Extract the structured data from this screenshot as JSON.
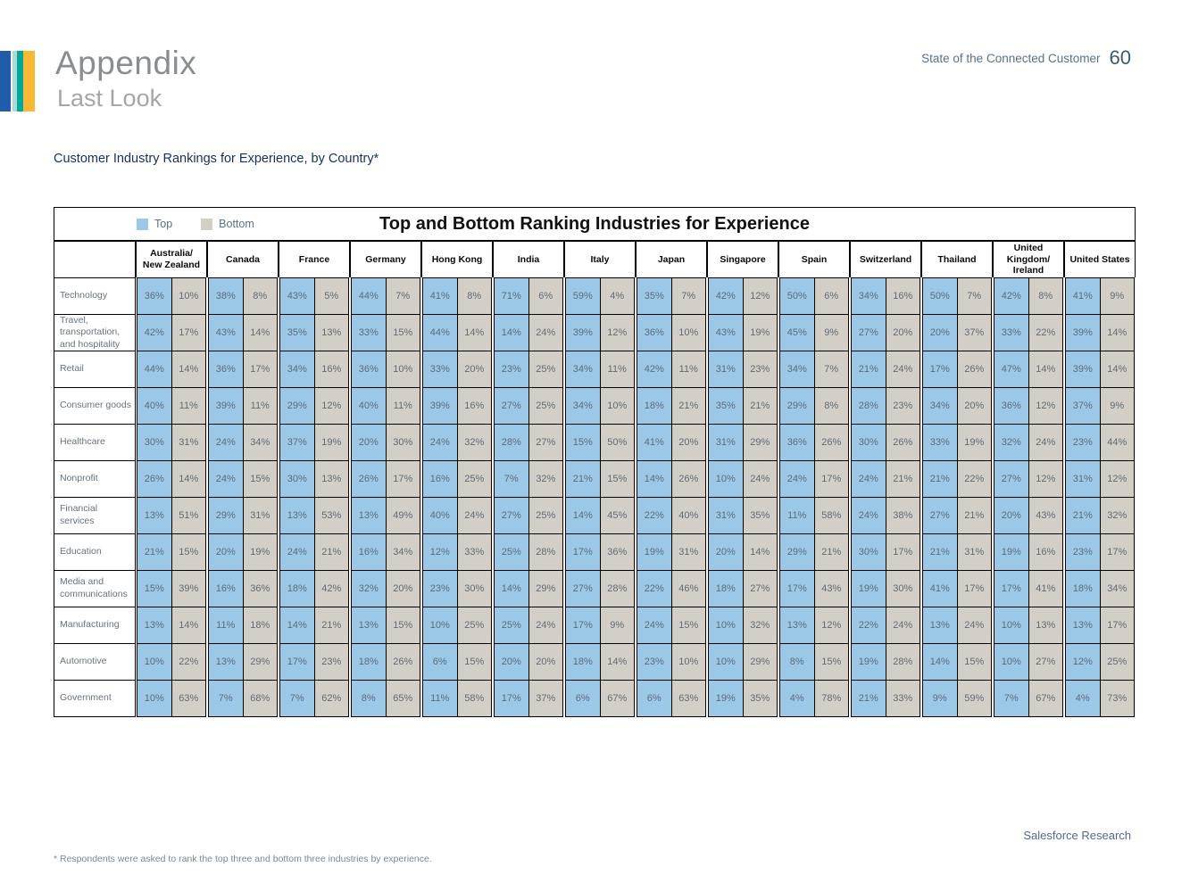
{
  "page": {
    "title": "Appendix",
    "subtitle": "Last Look",
    "report_name": "State of the Connected Customer",
    "page_number": "60",
    "section_title": "Customer Industry Rankings for Experience, by Country*",
    "footnote": "* Respondents were asked to rank the top three and bottom three industries by experience.",
    "attribution": "Salesforce Research"
  },
  "legend": {
    "top_label": "Top",
    "bottom_label": "Bottom"
  },
  "colors": {
    "top_cell": "#9CC8E8",
    "bottom_cell": "#D3CFC7",
    "accent_blue": "#1F5CA9",
    "accent_teal_light": "#A9DAD4",
    "accent_teal": "#00A79B",
    "accent_yellow": "#FBB834"
  },
  "chart_data": {
    "type": "table",
    "title": "Top and Bottom Ranking Industries for Experience",
    "unit": "percent",
    "sub_columns": [
      "Top",
      "Bottom"
    ],
    "columns": [
      "Australia/ New Zealand",
      "Canada",
      "France",
      "Germany",
      "Hong Kong",
      "India",
      "Italy",
      "Japan",
      "Singapore",
      "Spain",
      "Switzerland",
      "Thailand",
      "United Kingdom/ Ireland",
      "United States"
    ],
    "rows": [
      {
        "industry": "Technology",
        "values": [
          [
            36,
            10
          ],
          [
            38,
            8
          ],
          [
            43,
            5
          ],
          [
            44,
            7
          ],
          [
            41,
            8
          ],
          [
            71,
            6
          ],
          [
            59,
            4
          ],
          [
            35,
            7
          ],
          [
            42,
            12
          ],
          [
            50,
            6
          ],
          [
            34,
            16
          ],
          [
            50,
            7
          ],
          [
            42,
            8
          ],
          [
            41,
            9
          ]
        ]
      },
      {
        "industry": "Travel, transportation, and hospitality",
        "values": [
          [
            42,
            17
          ],
          [
            43,
            14
          ],
          [
            35,
            13
          ],
          [
            33,
            15
          ],
          [
            44,
            14
          ],
          [
            14,
            24
          ],
          [
            39,
            12
          ],
          [
            36,
            10
          ],
          [
            43,
            19
          ],
          [
            45,
            9
          ],
          [
            27,
            20
          ],
          [
            20,
            37
          ],
          [
            33,
            22
          ],
          [
            39,
            14
          ]
        ]
      },
      {
        "industry": "Retail",
        "values": [
          [
            44,
            14
          ],
          [
            36,
            17
          ],
          [
            34,
            16
          ],
          [
            36,
            10
          ],
          [
            33,
            20
          ],
          [
            23,
            25
          ],
          [
            34,
            11
          ],
          [
            42,
            11
          ],
          [
            31,
            23
          ],
          [
            34,
            7
          ],
          [
            21,
            24
          ],
          [
            17,
            26
          ],
          [
            47,
            14
          ],
          [
            39,
            14
          ]
        ]
      },
      {
        "industry": "Consumer goods",
        "values": [
          [
            40,
            11
          ],
          [
            39,
            11
          ],
          [
            29,
            12
          ],
          [
            40,
            11
          ],
          [
            39,
            16
          ],
          [
            27,
            25
          ],
          [
            34,
            10
          ],
          [
            18,
            21
          ],
          [
            35,
            21
          ],
          [
            29,
            8
          ],
          [
            28,
            23
          ],
          [
            34,
            20
          ],
          [
            36,
            12
          ],
          [
            37,
            9
          ]
        ]
      },
      {
        "industry": "Healthcare",
        "values": [
          [
            30,
            31
          ],
          [
            24,
            34
          ],
          [
            37,
            19
          ],
          [
            20,
            30
          ],
          [
            24,
            32
          ],
          [
            28,
            27
          ],
          [
            15,
            50
          ],
          [
            41,
            20
          ],
          [
            31,
            29
          ],
          [
            36,
            26
          ],
          [
            30,
            26
          ],
          [
            33,
            19
          ],
          [
            32,
            24
          ],
          [
            23,
            44
          ]
        ]
      },
      {
        "industry": "Nonprofit",
        "values": [
          [
            26,
            14
          ],
          [
            24,
            15
          ],
          [
            30,
            13
          ],
          [
            26,
            17
          ],
          [
            16,
            25
          ],
          [
            7,
            32
          ],
          [
            21,
            15
          ],
          [
            14,
            26
          ],
          [
            10,
            24
          ],
          [
            24,
            17
          ],
          [
            24,
            21
          ],
          [
            21,
            22
          ],
          [
            27,
            12
          ],
          [
            31,
            12
          ]
        ]
      },
      {
        "industry": "Financial services",
        "values": [
          [
            13,
            51
          ],
          [
            29,
            31
          ],
          [
            13,
            53
          ],
          [
            13,
            49
          ],
          [
            40,
            24
          ],
          [
            27,
            25
          ],
          [
            14,
            45
          ],
          [
            22,
            40
          ],
          [
            31,
            35
          ],
          [
            11,
            58
          ],
          [
            24,
            38
          ],
          [
            27,
            21
          ],
          [
            20,
            43
          ],
          [
            21,
            32
          ]
        ]
      },
      {
        "industry": "Education",
        "values": [
          [
            21,
            15
          ],
          [
            20,
            19
          ],
          [
            24,
            21
          ],
          [
            16,
            34
          ],
          [
            12,
            33
          ],
          [
            25,
            28
          ],
          [
            17,
            36
          ],
          [
            19,
            31
          ],
          [
            20,
            14
          ],
          [
            29,
            21
          ],
          [
            30,
            17
          ],
          [
            21,
            31
          ],
          [
            19,
            16
          ],
          [
            23,
            17
          ]
        ]
      },
      {
        "industry": "Media and communications",
        "values": [
          [
            15,
            39
          ],
          [
            16,
            36
          ],
          [
            18,
            42
          ],
          [
            32,
            20
          ],
          [
            23,
            30
          ],
          [
            14,
            29
          ],
          [
            27,
            28
          ],
          [
            22,
            46
          ],
          [
            18,
            27
          ],
          [
            17,
            43
          ],
          [
            19,
            30
          ],
          [
            41,
            17
          ],
          [
            17,
            41
          ],
          [
            18,
            34
          ]
        ]
      },
      {
        "industry": "Manufacturing",
        "values": [
          [
            13,
            14
          ],
          [
            11,
            18
          ],
          [
            14,
            21
          ],
          [
            13,
            15
          ],
          [
            10,
            25
          ],
          [
            25,
            24
          ],
          [
            17,
            9
          ],
          [
            24,
            15
          ],
          [
            10,
            32
          ],
          [
            13,
            12
          ],
          [
            22,
            24
          ],
          [
            13,
            24
          ],
          [
            10,
            13
          ],
          [
            13,
            17
          ]
        ]
      },
      {
        "industry": "Automotive",
        "values": [
          [
            10,
            22
          ],
          [
            13,
            29
          ],
          [
            17,
            23
          ],
          [
            18,
            26
          ],
          [
            6,
            15
          ],
          [
            20,
            20
          ],
          [
            18,
            14
          ],
          [
            23,
            10
          ],
          [
            10,
            29
          ],
          [
            8,
            15
          ],
          [
            19,
            28
          ],
          [
            14,
            15
          ],
          [
            10,
            27
          ],
          [
            12,
            25
          ]
        ]
      },
      {
        "industry": "Government",
        "values": [
          [
            10,
            63
          ],
          [
            7,
            68
          ],
          [
            7,
            62
          ],
          [
            8,
            65
          ],
          [
            11,
            58
          ],
          [
            17,
            37
          ],
          [
            6,
            67
          ],
          [
            6,
            63
          ],
          [
            19,
            35
          ],
          [
            4,
            78
          ],
          [
            21,
            33
          ],
          [
            9,
            59
          ],
          [
            7,
            67
          ],
          [
            4,
            73
          ]
        ]
      }
    ]
  }
}
